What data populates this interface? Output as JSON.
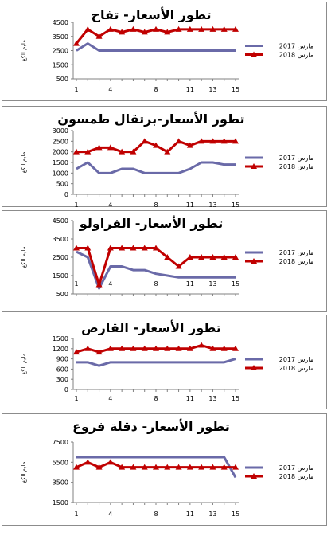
{
  "colors": {
    "march_2017": "#6a6aa8",
    "march_2018": "#c00000",
    "border": "#8c8c8c"
  },
  "chart_data": [
    {
      "type": "line",
      "title": "تطور الأسعار- تفاح",
      "ylabel": "مليم الكغ",
      "x": [
        1,
        2,
        3,
        4,
        5,
        6,
        7,
        8,
        9,
        10,
        11,
        12,
        13,
        14,
        15
      ],
      "x_tick_labels": [
        "1",
        "4",
        "8",
        "11",
        "13",
        "15"
      ],
      "y_ticks": [
        "500",
        "1500",
        "2500",
        "3500",
        "4500"
      ],
      "ylim": [
        500,
        4500
      ],
      "legend_position": "right",
      "series": [
        {
          "name": "مارس 2017",
          "values": [
            2500,
            3000,
            2500,
            2500,
            2500,
            2500,
            2500,
            2500,
            2500,
            2500,
            2500,
            2500,
            2500,
            2500,
            2500
          ]
        },
        {
          "name": "مارس 2018",
          "values": [
            3000,
            4000,
            3500,
            4000,
            3800,
            4000,
            3800,
            4000,
            3800,
            4000,
            4000,
            4000,
            4000,
            4000,
            4000
          ]
        }
      ]
    },
    {
      "type": "line",
      "title": "تطور الأسعار-برتقال طمسون",
      "ylabel": "مليم الكغ",
      "x": [
        1,
        2,
        3,
        4,
        5,
        6,
        7,
        8,
        9,
        10,
        11,
        12,
        13,
        14,
        15
      ],
      "x_tick_labels": [
        "1",
        "4",
        "8",
        "11",
        "13",
        "15"
      ],
      "y_ticks": [
        "0",
        "500",
        "1000",
        "1500",
        "2000",
        "2500",
        "3000"
      ],
      "ylim": [
        0,
        3000
      ],
      "legend_position": "right",
      "series": [
        {
          "name": "مارس 2017",
          "values": [
            1200,
            1500,
            1000,
            1000,
            1200,
            1200,
            1000,
            1000,
            1000,
            1000,
            1200,
            1500,
            1500,
            1400,
            1400
          ]
        },
        {
          "name": "مارس 2018",
          "values": [
            2000,
            2000,
            2200,
            2200,
            2000,
            2000,
            2500,
            2300,
            2000,
            2500,
            2300,
            2500,
            2500,
            2500,
            2500
          ]
        }
      ]
    },
    {
      "type": "line",
      "title": "تطور الأسعار- الفراولو",
      "ylabel": "مليم الكغ",
      "x": [
        1,
        2,
        3,
        4,
        5,
        6,
        7,
        8,
        9,
        10,
        11,
        12,
        13,
        14,
        15
      ],
      "x_tick_labels": [
        "1",
        "4",
        "8",
        "11",
        "13",
        "15"
      ],
      "y_ticks": [
        "500",
        "1500",
        "2500",
        "3500",
        "4500"
      ],
      "ylim": [
        500,
        4500
      ],
      "legend_position": "right",
      "series": [
        {
          "name": "مارس 2017",
          "values": [
            2800,
            2500,
            800,
            2000,
            2000,
            1800,
            1800,
            1600,
            1500,
            1400,
            1400,
            1400,
            1400,
            1400,
            1400
          ]
        },
        {
          "name": "مارس 2018",
          "values": [
            3000,
            3000,
            1000,
            3000,
            3000,
            3000,
            3000,
            3000,
            2500,
            2000,
            2500,
            2500,
            2500,
            2500,
            2500
          ]
        }
      ]
    },
    {
      "type": "line",
      "title": "تطور الأسعار- القارص",
      "ylabel": "مليم الكغ",
      "x": [
        1,
        2,
        3,
        4,
        5,
        6,
        7,
        8,
        9,
        10,
        11,
        12,
        13,
        14,
        15
      ],
      "x_tick_labels": [
        "1",
        "4",
        "8",
        "11",
        "13",
        "15"
      ],
      "y_ticks": [
        "0",
        "300",
        "600",
        "900",
        "1200",
        "1500"
      ],
      "ylim": [
        0,
        1500
      ],
      "legend_position": "right",
      "series": [
        {
          "name": "مارس 2017",
          "values": [
            800,
            800,
            700,
            800,
            800,
            800,
            800,
            800,
            800,
            800,
            800,
            800,
            800,
            800,
            900
          ]
        },
        {
          "name": "مارس 2018",
          "values": [
            1100,
            1200,
            1100,
            1200,
            1200,
            1200,
            1200,
            1200,
            1200,
            1200,
            1200,
            1300,
            1200,
            1200,
            1200
          ]
        }
      ]
    },
    {
      "type": "line",
      "title": "تطور الأسعار- دقلة فروع",
      "ylabel": "مليم الكغ",
      "x": [
        1,
        2,
        3,
        4,
        5,
        6,
        7,
        8,
        9,
        10,
        11,
        12,
        13,
        14,
        15
      ],
      "x_tick_labels": [
        "1",
        "4",
        "8",
        "11",
        "13",
        "15"
      ],
      "y_ticks": [
        "1500",
        "3500",
        "5500",
        "7500"
      ],
      "ylim": [
        1500,
        7500
      ],
      "legend_position": "right",
      "series": [
        {
          "name": "مارس 2017",
          "values": [
            6000,
            6000,
            6000,
            6000,
            6000,
            6000,
            6000,
            6000,
            6000,
            6000,
            6000,
            6000,
            6000,
            6000,
            4000
          ]
        },
        {
          "name": "مارس 2018",
          "values": [
            5000,
            5500,
            5000,
            5500,
            5000,
            5000,
            5000,
            5000,
            5000,
            5000,
            5000,
            5000,
            5000,
            5000,
            5000
          ]
        }
      ]
    }
  ]
}
